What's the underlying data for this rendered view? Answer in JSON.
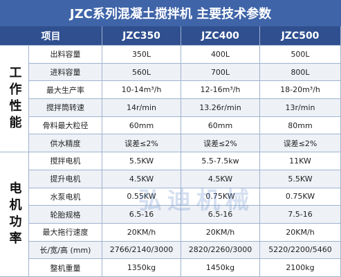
{
  "title": "JZC系列混凝土搅拌机 主要技术参数",
  "header": [
    "项目",
    "JZC350",
    "JZC400",
    "JZC500"
  ],
  "groups": [
    {
      "label": "工作性能",
      "rows": [
        [
          "出料容量",
          "350L",
          "400L",
          "500L"
        ],
        [
          "进料容量",
          "560L",
          "700L",
          "800L"
        ],
        [
          "最大生产率",
          "10-14m³/h",
          "12-16m³/h",
          "18-20m³/h"
        ],
        [
          "搅拌筒转速",
          "14r/min",
          "13.26r/min",
          "13r/min"
        ],
        [
          "骨料最大粒径",
          "60mm",
          "60mm",
          "80mm"
        ],
        [
          "供水精度",
          "误差≤2%",
          "误差≤2%",
          "误差≤2%"
        ]
      ]
    },
    {
      "label": "电机功率",
      "rows": [
        [
          "搅拌电机",
          "5.5KW",
          "5.5-7.5kw",
          "11KW"
        ],
        [
          "提升电机",
          "4.5KW",
          "4.5KW",
          "5.5KW"
        ],
        [
          "水泵电机",
          "0.55KW",
          "0.75KW",
          "0.75KW"
        ],
        [
          "轮胎规格",
          "6.5-16",
          "6.5-16",
          "7.5-16"
        ],
        [
          "最大拖行速度",
          "20KM/h",
          "20KM/h",
          "20KM/h"
        ],
        [
          "长/宽/高 (mm)",
          "2766/2140/3000",
          "2820/2260/3000",
          "5220/2200/5460"
        ],
        [
          "整机重量",
          "1350kg",
          "1450kg",
          "2100kg"
        ]
      ]
    }
  ],
  "watermark": "弘迪机械"
}
